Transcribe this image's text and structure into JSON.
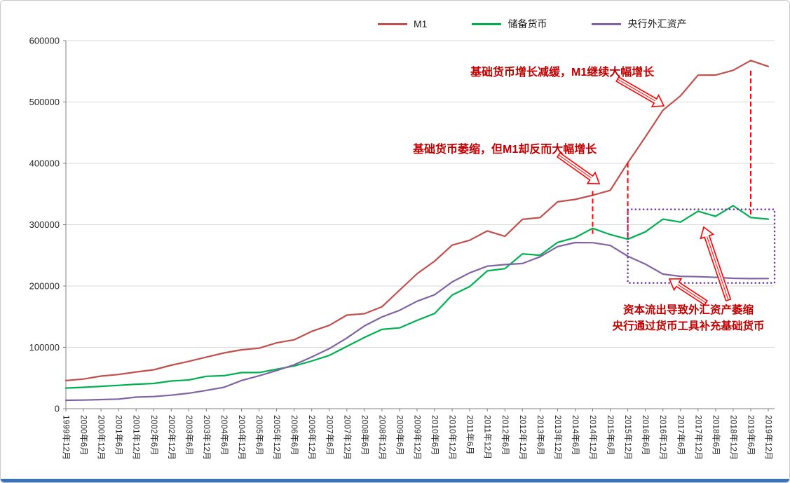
{
  "legend": {
    "items": [
      {
        "label": "M1",
        "color": "#c0504d"
      },
      {
        "label": "储备货币",
        "color": "#00b050"
      },
      {
        "label": "央行外汇资产",
        "color": "#8064a2"
      }
    ]
  },
  "annotations": {
    "m1_growth": "基础货币增长减缓，M1继续大幅增长",
    "base_shrink": "基础货币萎缩，但M1却反而大幅增长",
    "fx_outflow_line1": "资本流出导致外汇资产萎缩",
    "fx_outflow_line2": "央行通过货币工具补充基础货币",
    "text_color": "#c00000",
    "arrow_color": "#ff0000"
  },
  "chart_data": {
    "type": "line",
    "title": "",
    "xlabel": "",
    "ylabel": "",
    "ylim": [
      0,
      600000
    ],
    "y_ticks": [
      0,
      100000,
      200000,
      300000,
      400000,
      500000,
      600000
    ],
    "grid": true,
    "legend_position": "top",
    "x_tick_labels": [
      "1999年12月",
      "2000年6月",
      "2000年12月",
      "2001年6月",
      "2001年12月",
      "2002年6月",
      "2002年12月",
      "2003年6月",
      "2003年12月",
      "2004年6月",
      "2004年12月",
      "2005年6月",
      "2005年12月",
      "2006年6月",
      "2006年12月",
      "2007年6月",
      "2007年12月",
      "2008年6月",
      "2008年12月",
      "2009年6月",
      "2009年12月",
      "2010年6月",
      "2010年12月",
      "2011年6月",
      "2011年12月",
      "2012年6月",
      "2012年12月",
      "2013年6月",
      "2013年12月",
      "2014年6月",
      "2014年12月",
      "2015年6月",
      "2015年12月",
      "2016年6月",
      "2016年12月",
      "2017年6月",
      "2017年12月",
      "2018年6月",
      "2018年12月",
      "2019年6月",
      "2019年12月"
    ],
    "series": [
      {
        "name": "M1",
        "color": "#c0504d",
        "values": [
          45837,
          48399,
          53147,
          55723,
          59872,
          63470,
          70882,
          77246,
          84119,
          90801,
          95970,
          98601,
          107279,
          112342,
          126035,
          135847,
          152560,
          154820,
          166217,
          193138,
          220002,
          240580,
          266622,
          274663,
          289848,
          281027,
          308664,
          311490,
          337291,
          341156,
          348057,
          355836,
          400953,
          442843,
          486557,
          510023,
          543790,
          543937,
          551686,
          567700,
          558000
        ]
      },
      {
        "name": "储备货币",
        "color": "#00b050",
        "values": [
          33620,
          34832,
          36491,
          38110,
          39852,
          41114,
          45138,
          46818,
          52841,
          53815,
          58856,
          58921,
          64343,
          69601,
          77758,
          86822,
          101545,
          116063,
          129222,
          131715,
          143985,
          155159,
          185311,
          199086,
          224713,
          228390,
          252347,
          250217,
          271058,
          278929,
          294111,
          283923,
          276342,
          288189,
          308979,
          304266,
          321989,
          313620,
          330918,
          311680,
          309000
        ]
      },
      {
        "name": "央行外汇资产",
        "color": "#8064a2",
        "values": [
          13700,
          14100,
          14815,
          15700,
          18850,
          19750,
          22107,
          25300,
          29842,
          34800,
          45940,
          53600,
          62140,
          71600,
          84361,
          98000,
          115169,
          135000,
          149624,
          160300,
          175155,
          185700,
          206767,
          221500,
          232389,
          235000,
          236670,
          247700,
          264270,
          270900,
          270681,
          266205,
          248538,
          235810,
          219425,
          215785,
          215235,
          214131,
          212555,
          212130,
          212277
        ]
      }
    ],
    "highlights": {
      "vline_color": "#ff0000",
      "box_color": "#7030a0",
      "red_dashed_vlines": [
        {
          "x_label": "2014年12月",
          "y_from": 355000,
          "y_to": 285000
        },
        {
          "x_label": "2015年12月",
          "y_from": 401000,
          "y_to": 276000
        },
        {
          "x_label": "2019年6月",
          "y_from": 551000,
          "y_to": 315000
        }
      ],
      "purple_dotted_box": {
        "x_from_label": "2015年12月",
        "x_to_label": "2019年12月",
        "y_from": 205000,
        "y_to": 325000
      }
    }
  }
}
